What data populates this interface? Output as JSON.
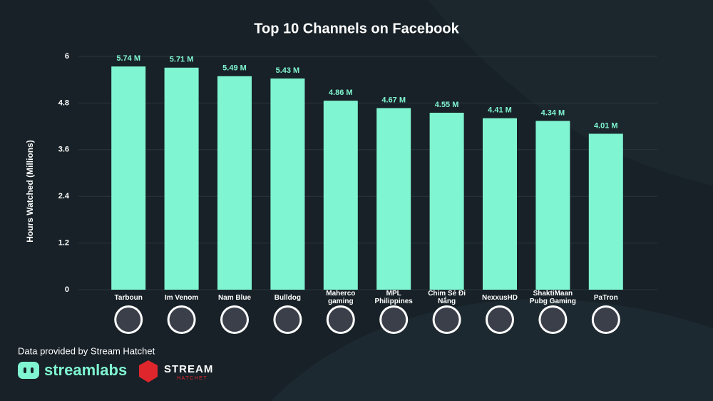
{
  "chart_data": {
    "type": "bar",
    "title": "Top 10 Channels on Facebook",
    "y_label": "Hours Watched (Millions)",
    "categories": [
      "Tarboun",
      "Im Venom",
      "Nam Blue",
      "Bulldog",
      "Maherco gaming",
      "MPL Philippines",
      "Chim Sẻ Đi Nắng",
      "NexxusHD",
      "ShaktiMaan Pubg Gaming",
      "PaTron"
    ],
    "values": [
      5.74,
      5.71,
      5.49,
      5.43,
      4.86,
      4.67,
      4.55,
      4.41,
      4.34,
      4.01
    ],
    "value_labels": [
      "5.74 M",
      "5.71 M",
      "5.49 M",
      "5.43 M",
      "4.86 M",
      "4.67 M",
      "4.55 M",
      "4.41 M",
      "4.34 M",
      "4.01 M"
    ],
    "color": "#80f5d1",
    "ylim": [
      0,
      6
    ],
    "yticks": [
      0,
      1.2,
      2.4,
      3.6,
      4.8,
      6
    ],
    "grid": true
  },
  "footer": {
    "source": "Data provided by Stream Hatchet",
    "logo_1": "streamlabs",
    "logo_2": "STREAM",
    "logo_2_sub": "HATCHET"
  }
}
